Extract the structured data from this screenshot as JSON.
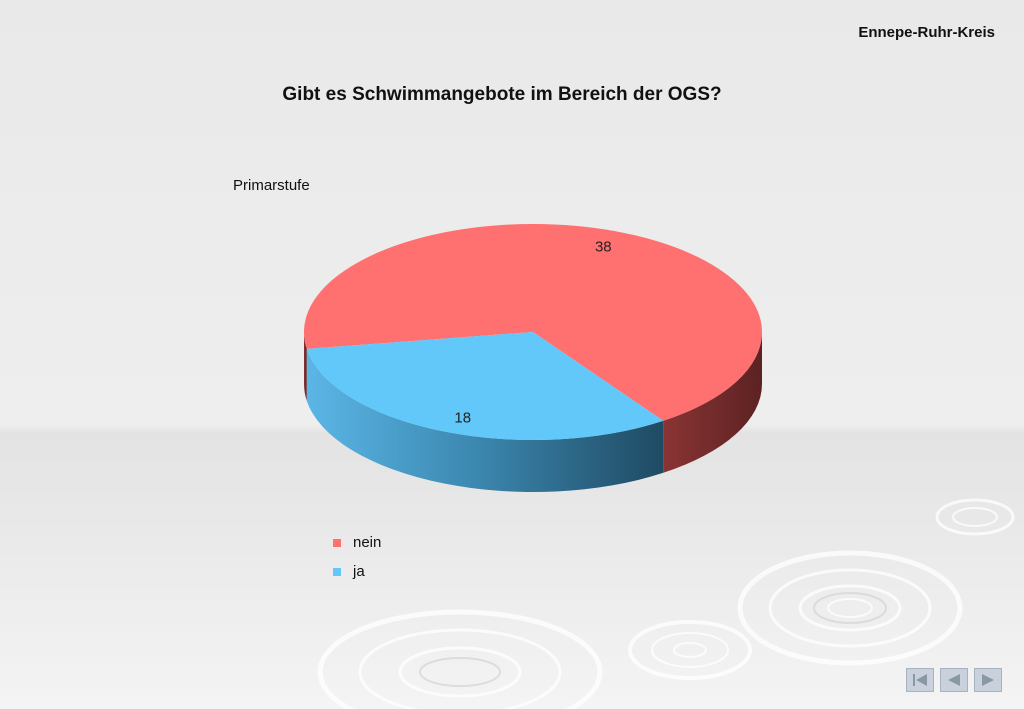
{
  "header": {
    "org": "Ennepe-Ruhr-Kreis"
  },
  "chart_data": {
    "type": "pie",
    "title": "Gibt es Schwimmangebote im Bereich der OGS?",
    "subtitle": "Primarstufe",
    "slices": [
      {
        "label": "nein",
        "value": 38,
        "color": "#ff7070"
      },
      {
        "label": "ja",
        "value": 18,
        "color": "#62c8fa"
      }
    ],
    "legend_position": "bottom-left"
  },
  "nav": {
    "first": "first-slide-icon",
    "prev": "previous-slide-icon",
    "next": "next-slide-icon"
  }
}
